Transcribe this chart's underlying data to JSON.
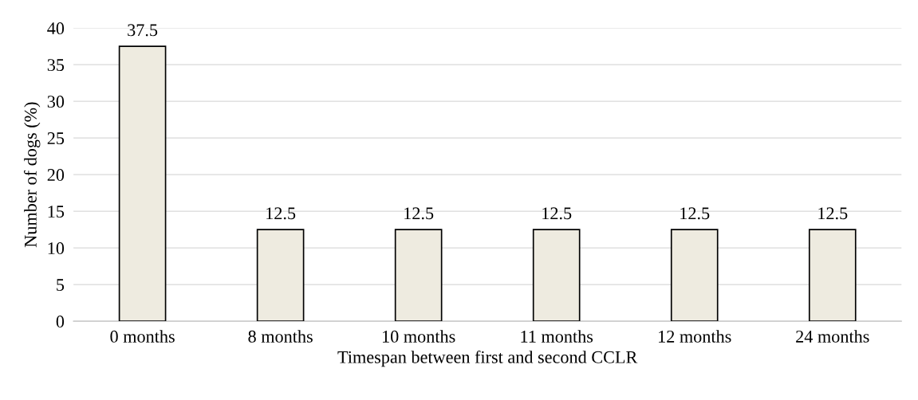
{
  "chart_data": {
    "type": "bar",
    "xlabel": "Timespan between first and second CCLR",
    "ylabel": "Number of dogs (%)",
    "categories": [
      "0 months",
      "8 months",
      "10 months",
      "11 months",
      "12 months",
      "24 months"
    ],
    "values": [
      37.5,
      12.5,
      12.5,
      12.5,
      12.5,
      12.5
    ],
    "color": "#eeebe0",
    "ylim": [
      0,
      40
    ],
    "yticks": [
      0,
      5,
      10,
      15,
      20,
      25,
      30,
      35,
      40
    ],
    "grid": "y",
    "data_labels": true
  }
}
